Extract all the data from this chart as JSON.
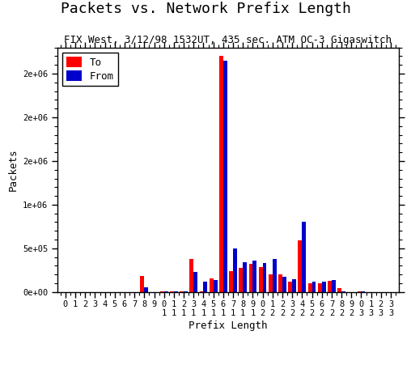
{
  "title": "Packets vs. Network Prefix Length",
  "subtitle": "FIX West, 3/12/98 1532UT, 435 sec. ATM OC-3 Gigaswitch",
  "xlabel": "Prefix Length",
  "ylabel": "Packets",
  "ylim": [
    0,
    2800000
  ],
  "yticks": [
    0,
    500000,
    1000000,
    1500000,
    2000000,
    2500000
  ],
  "ytick_labels": [
    "0e+00",
    "5e+05",
    "1e+06",
    "2e+06",
    "2e+06",
    "2e+06"
  ],
  "prefix_lengths": [
    0,
    1,
    2,
    3,
    4,
    5,
    6,
    7,
    8,
    9,
    10,
    11,
    12,
    13,
    14,
    15,
    16,
    17,
    18,
    19,
    20,
    21,
    22,
    23,
    24,
    25,
    26,
    27,
    28,
    29,
    30,
    31,
    32,
    33
  ],
  "to_values": [
    0,
    0,
    0,
    0,
    0,
    0,
    0,
    0,
    180000,
    0,
    5000,
    5000,
    5000,
    380000,
    10000,
    155000,
    2700000,
    240000,
    280000,
    320000,
    290000,
    200000,
    200000,
    120000,
    590000,
    100000,
    100000,
    130000,
    40000,
    0,
    5000,
    0,
    0,
    0
  ],
  "from_values": [
    0,
    0,
    0,
    0,
    0,
    0,
    0,
    0,
    55000,
    0,
    5000,
    5000,
    5000,
    230000,
    120000,
    135000,
    2650000,
    500000,
    340000,
    360000,
    330000,
    380000,
    170000,
    150000,
    800000,
    120000,
    120000,
    140000,
    5000,
    0,
    5000,
    0,
    0,
    0
  ],
  "to_color": "#ff0000",
  "from_color": "#0000cc",
  "background_color": "#ffffff",
  "title_fontsize": 13,
  "subtitle_fontsize": 9,
  "axis_label_fontsize": 9,
  "tick_fontsize": 7.5,
  "legend_fontsize": 9
}
